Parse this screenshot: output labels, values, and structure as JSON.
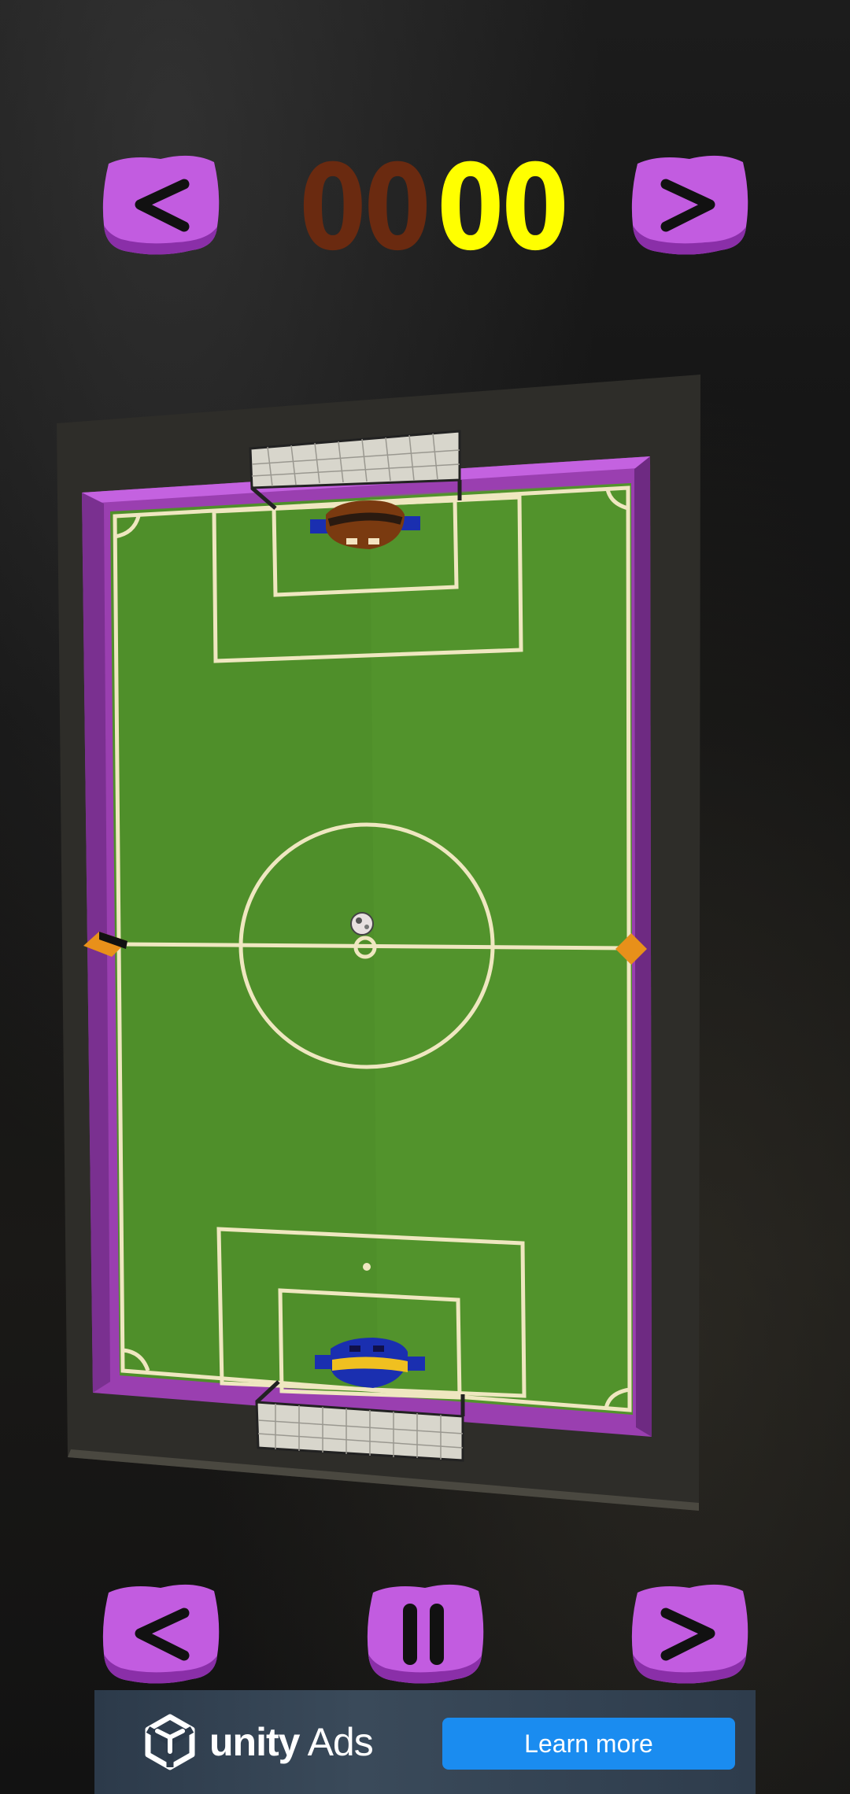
{
  "hud": {
    "score_left": "00",
    "score_right": "00",
    "score_left_color": "#6a2a10",
    "score_right_color": "#ffff00",
    "top_prev_label": "<",
    "top_next_label": ">"
  },
  "controls": {
    "move_left_label": "<",
    "pause_label": "II",
    "move_right_label": ">",
    "button_color": "#b24fd0"
  },
  "field": {
    "turf_color": "#4f8f2a",
    "rail_color": "#9a3fb0",
    "top_paddle_color": "#7a3a10",
    "bottom_paddle_color": "#f0c020"
  },
  "ad": {
    "brand_bold": "unity",
    "brand_light": " Ads",
    "cta": "Learn more"
  }
}
